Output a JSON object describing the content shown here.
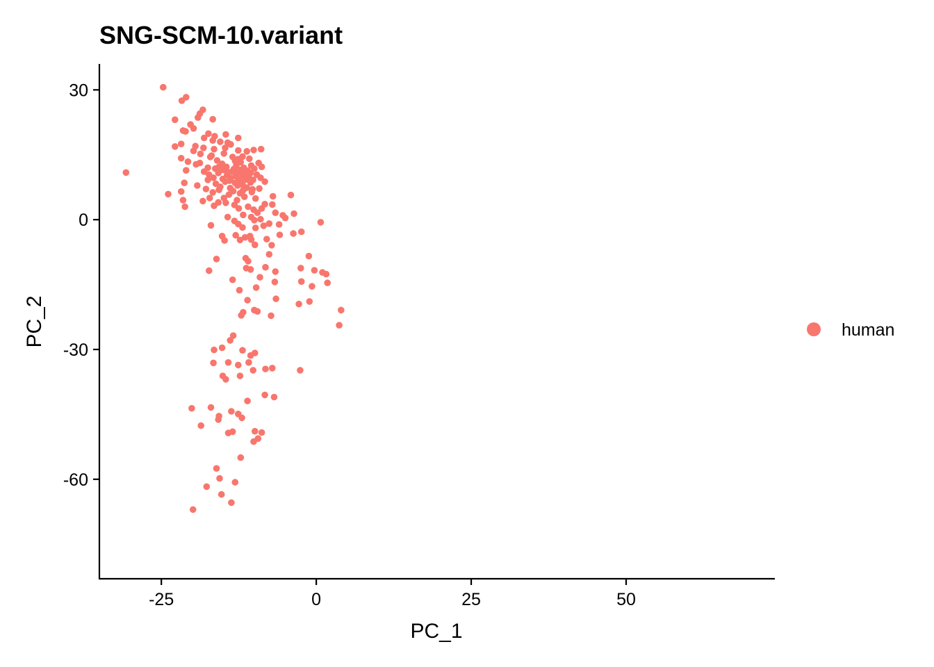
{
  "chart_data": {
    "type": "scatter",
    "title": "SNG-SCM-10.variant",
    "xlabel": "PC_1",
    "ylabel": "PC_2",
    "xlim": [
      -35,
      74
    ],
    "ylim": [
      -83,
      36
    ],
    "xticks": [
      -25,
      0,
      25,
      50
    ],
    "yticks": [
      30,
      0,
      -30,
      -60
    ],
    "xtick_labels": [
      "-25",
      "0",
      "25",
      "50"
    ],
    "ytick_labels": [
      "30",
      "0",
      "-30",
      "-60"
    ],
    "grid": false,
    "legend": {
      "position": "right",
      "entries": [
        "human"
      ]
    },
    "series": [
      {
        "name": "human",
        "color": "#F8766D",
        "points": [
          [
            -24.7,
            30.6
          ],
          [
            -21.0,
            28.3
          ],
          [
            -21.7,
            27.5
          ],
          [
            -22.8,
            23.1
          ],
          [
            -18.3,
            25.4
          ],
          [
            -18.8,
            24.5
          ],
          [
            -19.1,
            23.6
          ],
          [
            -16.7,
            23.2
          ],
          [
            -20.3,
            22.0
          ],
          [
            -19.8,
            21.1
          ],
          [
            -21.5,
            20.6
          ],
          [
            -21.1,
            20.4
          ],
          [
            -17.4,
            19.9
          ],
          [
            -16.4,
            19.3
          ],
          [
            -14.6,
            19.7
          ],
          [
            -12.6,
            18.9
          ],
          [
            -14.3,
            17.8
          ],
          [
            -13.8,
            17.4
          ],
          [
            -18.1,
            18.9
          ],
          [
            -16.7,
            18.3
          ],
          [
            -15.5,
            18.0
          ],
          [
            -22.8,
            16.9
          ],
          [
            -21.8,
            17.5
          ],
          [
            -19.5,
            17.0
          ],
          [
            -18.2,
            16.6
          ],
          [
            -19.8,
            15.9
          ],
          [
            -16.5,
            16.3
          ],
          [
            -12.6,
            16.0
          ],
          [
            -11.2,
            15.8
          ],
          [
            -10.1,
            16.1
          ],
          [
            -8.9,
            16.3
          ],
          [
            -21.8,
            14.2
          ],
          [
            -20.7,
            13.4
          ],
          [
            -19.4,
            12.8
          ],
          [
            -18.8,
            13.1
          ],
          [
            -17.1,
            14.5
          ],
          [
            -16.0,
            13.7
          ],
          [
            -15.2,
            12.9
          ],
          [
            -14.5,
            12.2
          ],
          [
            -13.3,
            11.7
          ],
          [
            -12.9,
            12.6
          ],
          [
            -12.2,
            13.3
          ],
          [
            -11.7,
            12.0
          ],
          [
            -11.1,
            11.3
          ],
          [
            -10.5,
            12.5
          ],
          [
            -10.0,
            11.8
          ],
          [
            -9.3,
            13.1
          ],
          [
            -8.8,
            12.2
          ],
          [
            -21.0,
            11.4
          ],
          [
            -18.1,
            11.1
          ],
          [
            -17.3,
            10.4
          ],
          [
            -16.6,
            9.7
          ],
          [
            -15.8,
            10.8
          ],
          [
            -15.1,
            9.4
          ],
          [
            -14.4,
            10.3
          ],
          [
            -13.8,
            9.6
          ],
          [
            -13.0,
            10.1
          ],
          [
            -12.5,
            9.0
          ],
          [
            -12.0,
            10.7
          ],
          [
            -11.4,
            9.3
          ],
          [
            -10.9,
            10.0
          ],
          [
            -10.2,
            9.2
          ],
          [
            -9.6,
            10.4
          ],
          [
            -9.0,
            9.7
          ],
          [
            -13.6,
            11.1
          ],
          [
            -13.1,
            8.5
          ],
          [
            -12.7,
            7.9
          ],
          [
            -14.7,
            8.8
          ],
          [
            -15.5,
            7.6
          ],
          [
            -16.2,
            8.3
          ],
          [
            -11.9,
            8.1
          ],
          [
            -11.2,
            7.4
          ],
          [
            -10.6,
            8.6
          ],
          [
            -8.3,
            8.8
          ],
          [
            -9.2,
            7.2
          ],
          [
            -30.7,
            10.9
          ],
          [
            -21.3,
            8.5
          ],
          [
            -21.8,
            6.5
          ],
          [
            -23.9,
            5.9
          ],
          [
            -19.2,
            7.9
          ],
          [
            -17.8,
            7.1
          ],
          [
            -16.7,
            6.3
          ],
          [
            -15.7,
            6.9
          ],
          [
            -14.1,
            5.8
          ],
          [
            -13.4,
            6.6
          ],
          [
            -12.3,
            6.1
          ],
          [
            -11.6,
            5.3
          ],
          [
            -10.4,
            6.4
          ],
          [
            -9.8,
            4.9
          ],
          [
            -7.0,
            5.4
          ],
          [
            -4.1,
            5.7
          ],
          [
            -21.5,
            4.5
          ],
          [
            -21.2,
            3.0
          ],
          [
            -18.3,
            4.3
          ],
          [
            -17.2,
            5.0
          ],
          [
            -16.5,
            3.2
          ],
          [
            -14.6,
            3.9
          ],
          [
            -13.2,
            3.4
          ],
          [
            -12.5,
            2.6
          ],
          [
            -11.0,
            3.0
          ],
          [
            -10.1,
            2.3
          ],
          [
            -9.5,
            1.6
          ],
          [
            -8.8,
            2.6
          ],
          [
            -8.3,
            3.6
          ],
          [
            -7.1,
            3.5
          ],
          [
            -6.6,
            1.6
          ],
          [
            -5.4,
            1.0
          ],
          [
            -5.0,
            0.4
          ],
          [
            -3.6,
            1.4
          ],
          [
            -11.8,
            1.1
          ],
          [
            -10.5,
            0.6
          ],
          [
            -14.3,
            0.6
          ],
          [
            -17.0,
            -1.3
          ],
          [
            -13.2,
            -0.3
          ],
          [
            -11.9,
            -1.8
          ],
          [
            -9.8,
            -1.9
          ],
          [
            -8.5,
            -1.4
          ],
          [
            -7.6,
            -0.9
          ],
          [
            -3.7,
            -3.2
          ],
          [
            -2.4,
            -2.8
          ],
          [
            0.7,
            -0.6
          ],
          [
            -15.2,
            -3.8
          ],
          [
            -14.8,
            -4.8
          ],
          [
            -13.0,
            -3.6
          ],
          [
            -12.3,
            -4.7
          ],
          [
            -11.5,
            -4.1
          ],
          [
            -10.7,
            -3.8
          ],
          [
            -9.9,
            -5.8
          ],
          [
            -10.5,
            -4.6
          ],
          [
            -8.0,
            -4.5
          ],
          [
            -5.9,
            -3.5
          ],
          [
            -1.2,
            -8.4
          ],
          [
            -16.1,
            -9.1
          ],
          [
            -11.4,
            -8.9
          ],
          [
            -11.0,
            -9.6
          ],
          [
            -7.6,
            -8.0
          ],
          [
            -17.3,
            -11.8
          ],
          [
            -11.3,
            -11.2
          ],
          [
            -10.6,
            -11.5
          ],
          [
            -8.2,
            -11.0
          ],
          [
            -6.6,
            -12.0
          ],
          [
            -2.5,
            -11.2
          ],
          [
            -0.3,
            -11.7
          ],
          [
            1.0,
            -12.2
          ],
          [
            1.6,
            -12.6
          ],
          [
            -2.4,
            -14.3
          ],
          [
            -0.7,
            -15.4
          ],
          [
            1.8,
            -14.6
          ],
          [
            -9.7,
            -15.7
          ],
          [
            -11.1,
            -18.6
          ],
          [
            -6.5,
            -18.3
          ],
          [
            -2.8,
            -19.5
          ],
          [
            -1.1,
            -18.9
          ],
          [
            -11.8,
            -21.4
          ],
          [
            -10.0,
            -20.9
          ],
          [
            -9.5,
            -21.2
          ],
          [
            -12.1,
            -22.1
          ],
          [
            -7.3,
            -22.2
          ],
          [
            4.0,
            -20.9
          ],
          [
            3.7,
            -24.4
          ],
          [
            -13.4,
            -26.8
          ],
          [
            -13.9,
            -27.9
          ],
          [
            -15.2,
            -29.6
          ],
          [
            -16.5,
            -30.1
          ],
          [
            -11.9,
            -30.2
          ],
          [
            -10.6,
            -31.4
          ],
          [
            -9.9,
            -30.8
          ],
          [
            -16.6,
            -33.1
          ],
          [
            -14.2,
            -33.0
          ],
          [
            -12.6,
            -33.6
          ],
          [
            -10.9,
            -33.0
          ],
          [
            -10.2,
            -34.8
          ],
          [
            -8.2,
            -34.5
          ],
          [
            -7.1,
            -34.3
          ],
          [
            -2.6,
            -34.8
          ],
          [
            -15.1,
            -36.1
          ],
          [
            -14.6,
            -36.9
          ],
          [
            -12.3,
            -36.1
          ],
          [
            -8.3,
            -40.5
          ],
          [
            -6.8,
            -41.0
          ],
          [
            -11.1,
            -41.9
          ],
          [
            -20.1,
            -43.6
          ],
          [
            -17.0,
            -43.4
          ],
          [
            -13.7,
            -44.3
          ],
          [
            -12.6,
            -44.9
          ],
          [
            -15.7,
            -45.4
          ],
          [
            -12.0,
            -45.8
          ],
          [
            -15.8,
            -46.2
          ],
          [
            -18.6,
            -47.6
          ],
          [
            -14.2,
            -49.3
          ],
          [
            -13.5,
            -49.0
          ],
          [
            -9.9,
            -48.9
          ],
          [
            -8.8,
            -49.2
          ],
          [
            -9.4,
            -50.6
          ],
          [
            -10.1,
            -51.3
          ],
          [
            -12.2,
            -55.0
          ],
          [
            -16.1,
            -57.5
          ],
          [
            -15.6,
            -59.8
          ],
          [
            -13.1,
            -60.7
          ],
          [
            -17.7,
            -61.7
          ],
          [
            -15.3,
            -63.5
          ],
          [
            -13.7,
            -65.4
          ],
          [
            -19.9,
            -67.0
          ],
          [
            -6.7,
            -14.4
          ],
          [
            -9.1,
            -13.3
          ],
          [
            -13.5,
            -13.9
          ],
          [
            -12.4,
            -16.3
          ],
          [
            -16.9,
            14.8
          ],
          [
            -14.9,
            15.3
          ],
          [
            -13.5,
            14.5
          ],
          [
            -18.7,
            15.2
          ],
          [
            -11.9,
            14.6
          ],
          [
            -10.8,
            14.1
          ],
          [
            -17.5,
            12.0
          ],
          [
            -14.3,
            11.0
          ],
          [
            -12.7,
            10.8
          ],
          [
            -11.5,
            10.5
          ],
          [
            -16.3,
            11.8
          ],
          [
            -15.0,
            11.5
          ],
          [
            -12.1,
            9.5
          ],
          [
            -13.9,
            7.3
          ],
          [
            -14.9,
            5.0
          ],
          [
            -15.8,
            4.0
          ],
          [
            -12.8,
            4.5
          ],
          [
            -10.0,
            -0.1
          ],
          [
            -12.6,
            -1.0
          ],
          [
            -9.0,
            0.1
          ],
          [
            -6.0,
            -1.1
          ],
          [
            -7.2,
            -5.9
          ],
          [
            -14.0,
            9.0
          ],
          [
            -12.9,
            8.4
          ],
          [
            -10.6,
            10.8
          ],
          [
            -12.3,
            11.5
          ],
          [
            -13.1,
            13.6
          ],
          [
            -15.7,
            12.2
          ],
          [
            -17.5,
            9.2
          ],
          [
            -11.8,
            6.8
          ],
          [
            -10.3,
            7.0
          ],
          [
            -12.6,
            14.0
          ],
          [
            -14.7,
            16.6
          ]
        ]
      }
    ]
  }
}
